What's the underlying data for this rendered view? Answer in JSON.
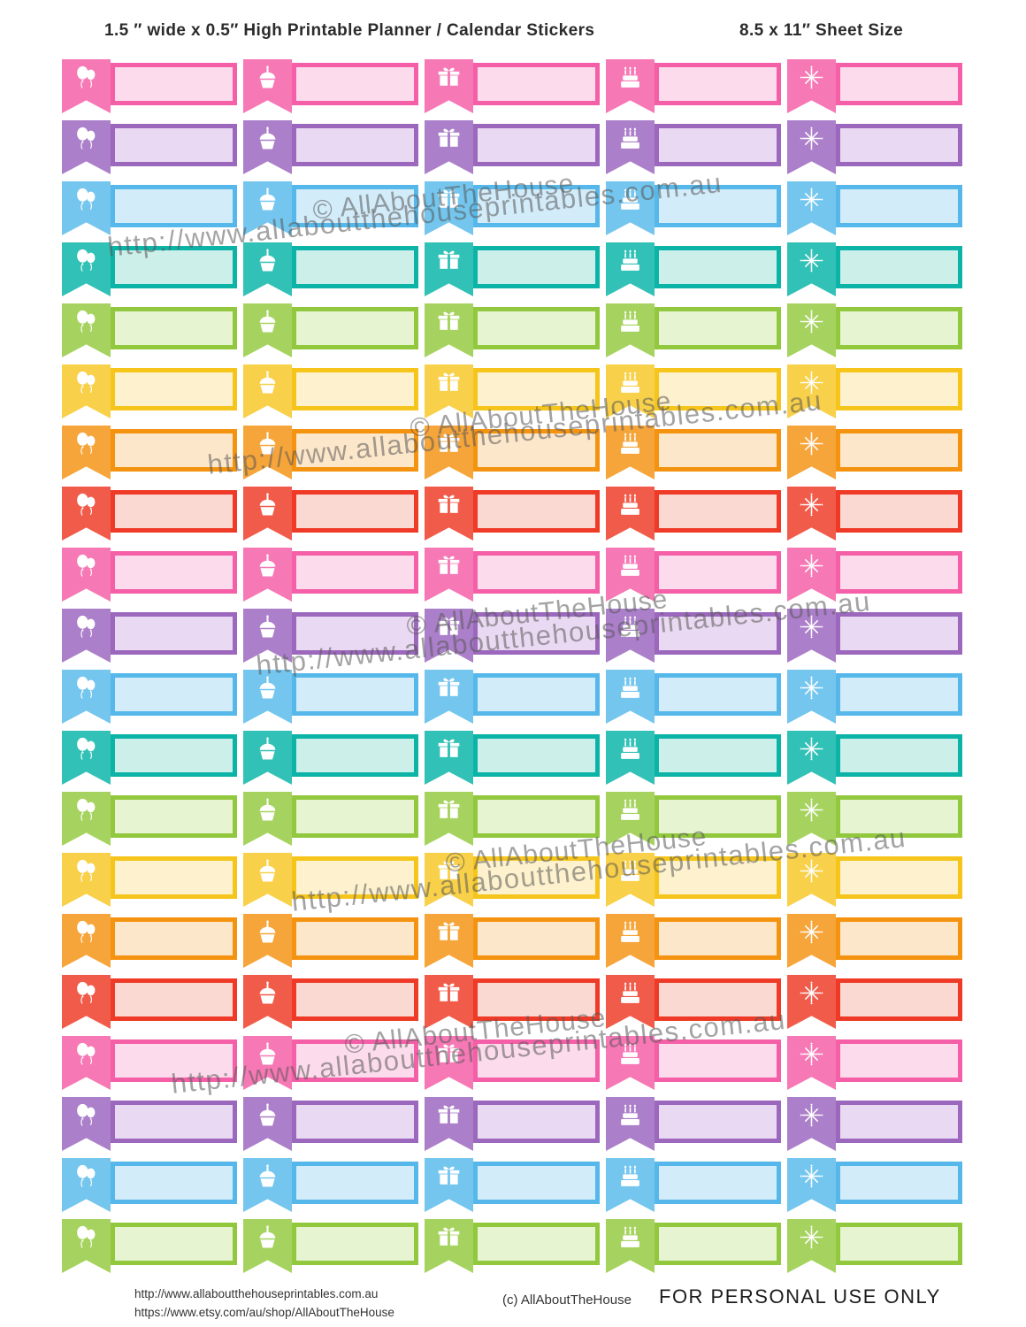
{
  "header": {
    "title": "1.5 ″ wide x 0.5″ High Printable Planner / Calendar Stickers",
    "sheet_size": "8.5 x 11″ Sheet Size"
  },
  "sheet": {
    "columns": [
      {
        "icon": "balloons-icon"
      },
      {
        "icon": "cupcake-icon"
      },
      {
        "icon": "gift-icon"
      },
      {
        "icon": "cake-icon"
      },
      {
        "icon": "fireworks-icon"
      }
    ],
    "palette": {
      "pink": {
        "border": "#f45fa7",
        "flag": "#f678b5",
        "fill": "#fcdcec"
      },
      "purple": {
        "border": "#9c68bd",
        "flag": "#ab7fc9",
        "fill": "#ead9f2"
      },
      "blue": {
        "border": "#56b8ea",
        "flag": "#74c6ee",
        "fill": "#d3ecfa"
      },
      "teal": {
        "border": "#0cb4a8",
        "flag": "#32c1b6",
        "fill": "#ccefe9"
      },
      "green": {
        "border": "#92c83e",
        "flag": "#a6d35f",
        "fill": "#e6f4d1"
      },
      "yellow": {
        "border": "#f6c51c",
        "flag": "#f8d049",
        "fill": "#fdf2cd"
      },
      "orange": {
        "border": "#f4930f",
        "flag": "#f6a53a",
        "fill": "#fde7ca"
      },
      "red": {
        "border": "#ee3a26",
        "flag": "#f15b4a",
        "fill": "#fbd9d3"
      }
    },
    "row_colors": [
      "pink",
      "purple",
      "blue",
      "teal",
      "green",
      "yellow",
      "orange",
      "red",
      "pink",
      "purple",
      "blue",
      "teal",
      "green",
      "yellow",
      "orange",
      "red",
      "pink",
      "purple",
      "blue",
      "green"
    ]
  },
  "watermark": {
    "copyright": "© AllAboutTheHouse",
    "url": "http://www.allaboutthehouseprintables.com.au"
  },
  "footer": {
    "url_site": "http://www.allaboutthehouseprintables.com.au",
    "url_etsy": "https://www.etsy.com/au/shop/AllAboutTheHouse",
    "credit": "(c) AllAboutTheHouse",
    "license": "FOR PERSONAL USE ONLY"
  }
}
